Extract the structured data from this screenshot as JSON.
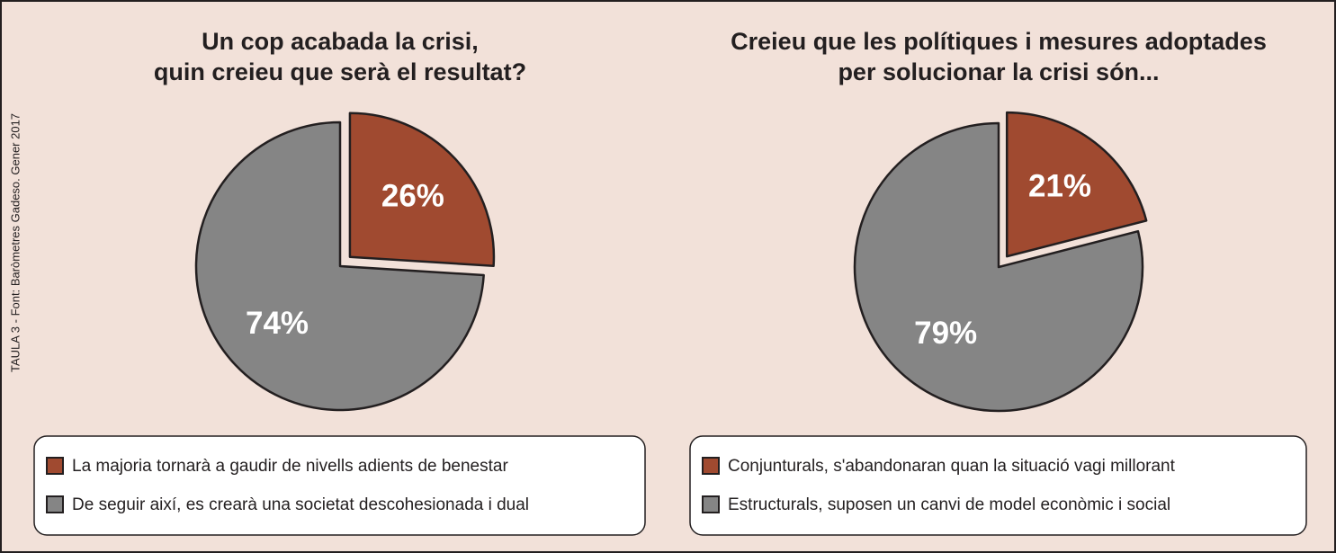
{
  "source": "TAULA 3  -  Font: Baròmetres Gadeso. Gener 2017",
  "chart_data": [
    {
      "type": "pie",
      "title": [
        "Un cop acabada la crisi,",
        "quin creieu que serà el resultat?"
      ],
      "categories": [
        "La majoria tornarà a gaudir de nivells adients de benestar",
        "De seguir així, es crearà una societat descohesionada i dual"
      ],
      "values": [
        26,
        74
      ],
      "value_labels": [
        "26%",
        "74%"
      ],
      "colors": [
        "#a04a30",
        "#858585"
      ]
    },
    {
      "type": "pie",
      "title": [
        "Creieu que les polítiques i mesures adoptades",
        "per solucionar la crisi són..."
      ],
      "categories": [
        "Conjunturals, s'abandonaran quan la situació vagi millorant",
        "Estructurals, suposen un canvi de model econòmic i social"
      ],
      "values": [
        21,
        79
      ],
      "value_labels": [
        "21%",
        "79%"
      ],
      "colors": [
        "#a04a30",
        "#858585"
      ]
    }
  ]
}
